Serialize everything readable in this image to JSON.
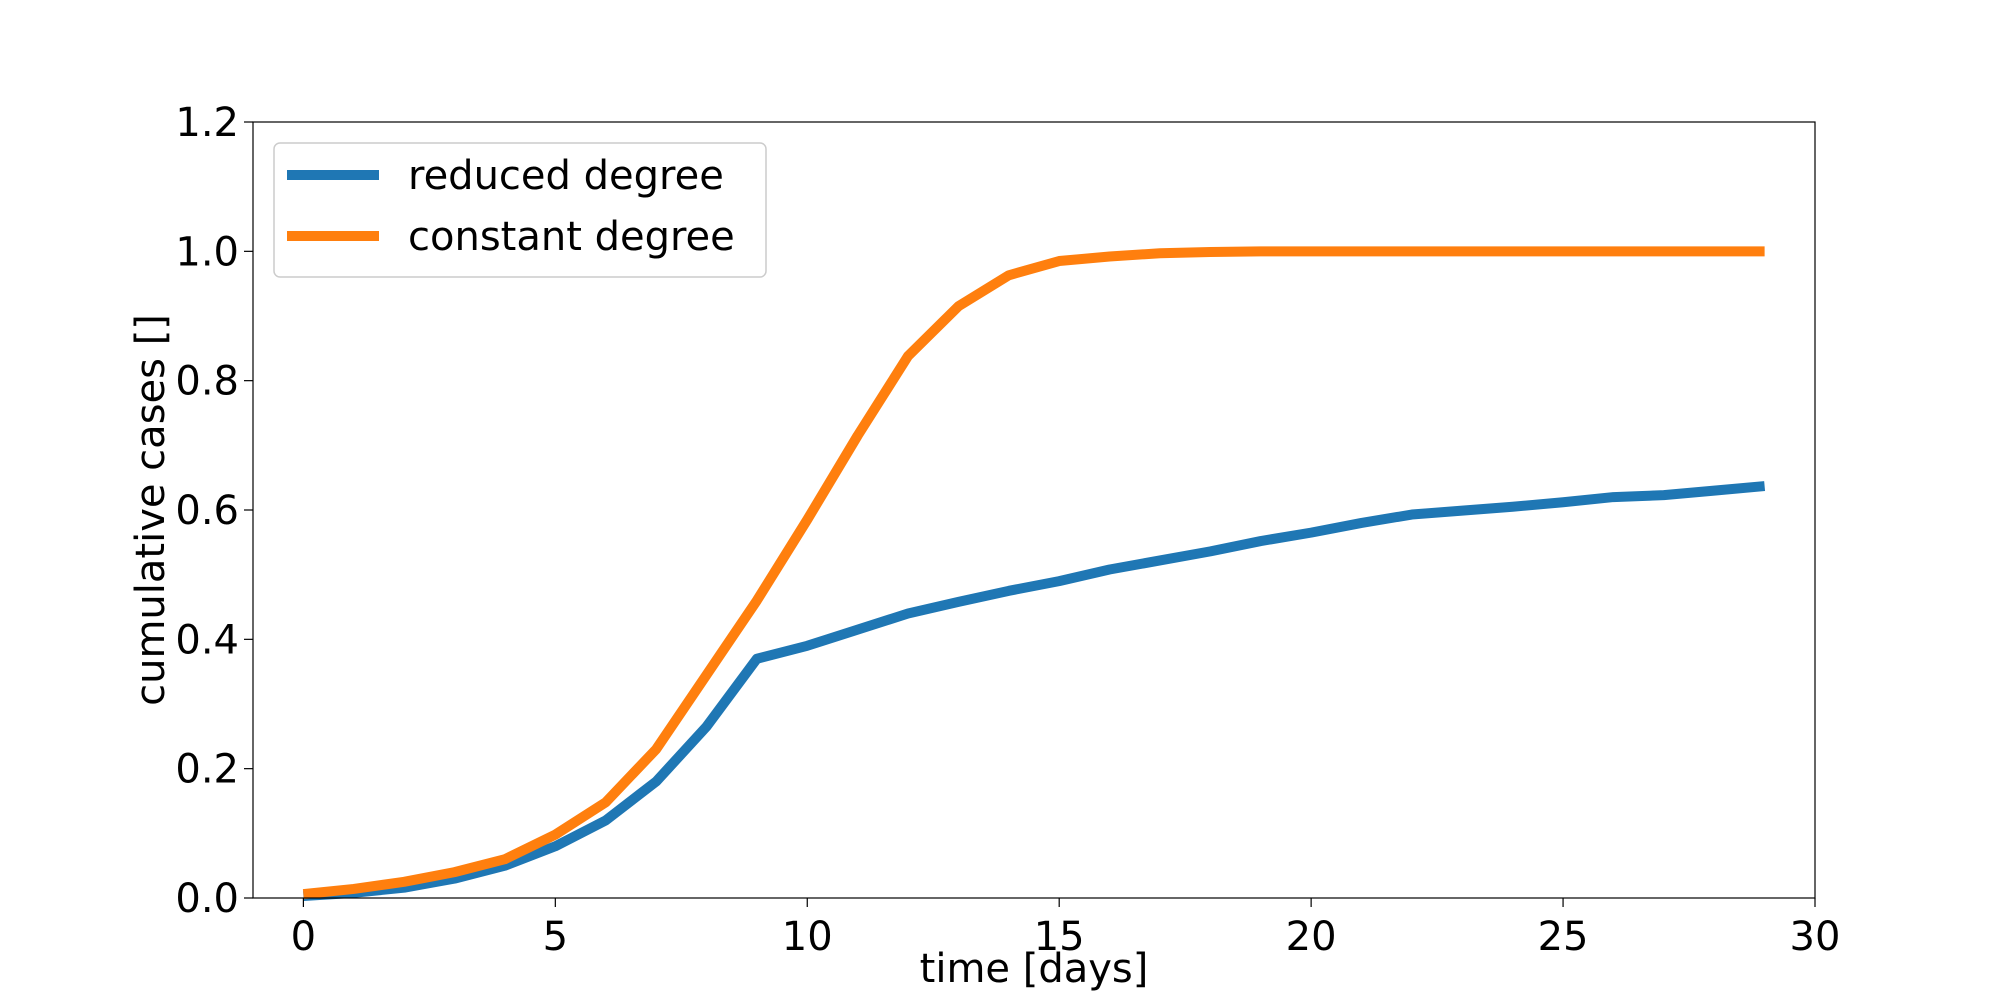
{
  "chart_data": {
    "type": "line",
    "title": "",
    "xlabel": "time [days]",
    "ylabel": "cumulative cases []",
    "xlim": [
      -1,
      30
    ],
    "ylim": [
      0.0,
      1.2
    ],
    "xticks": [
      0,
      5,
      10,
      15,
      20,
      25,
      30
    ],
    "xtick_labels": [
      "0",
      "5",
      "10",
      "15",
      "20",
      "25",
      "30"
    ],
    "yticks": [
      0.0,
      0.2,
      0.4,
      0.6,
      0.8,
      1.0,
      1.2
    ],
    "ytick_labels": [
      "0.0",
      "0.2",
      "0.4",
      "0.6",
      "0.8",
      "1.0",
      "1.2"
    ],
    "grid": false,
    "legend_position": "top-left",
    "x": [
      0,
      1,
      2,
      3,
      4,
      5,
      6,
      7,
      8,
      9,
      10,
      11,
      12,
      13,
      14,
      15,
      16,
      17,
      18,
      19,
      20,
      21,
      22,
      23,
      24,
      25,
      26,
      27,
      28,
      29
    ],
    "series": [
      {
        "name": "reduced degree",
        "color": "#1f77b4",
        "values": [
          0.003,
          0.008,
          0.016,
          0.03,
          0.05,
          0.08,
          0.12,
          0.18,
          0.265,
          0.37,
          0.39,
          0.415,
          0.44,
          0.458,
          0.475,
          0.49,
          0.508,
          0.522,
          0.536,
          0.552,
          0.565,
          0.58,
          0.593,
          0.599,
          0.605,
          0.612,
          0.62,
          0.623,
          0.63,
          0.637
        ]
      },
      {
        "name": "constant degree",
        "color": "#ff7f0e",
        "values": [
          0.006,
          0.014,
          0.025,
          0.04,
          0.06,
          0.098,
          0.148,
          0.23,
          0.345,
          0.46,
          0.585,
          0.715,
          0.838,
          0.915,
          0.963,
          0.985,
          0.992,
          0.997,
          0.999,
          1.0,
          1.0,
          1.0,
          1.0,
          1.0,
          1.0,
          1.0,
          1.0,
          1.0,
          1.0,
          1.0
        ]
      }
    ]
  }
}
